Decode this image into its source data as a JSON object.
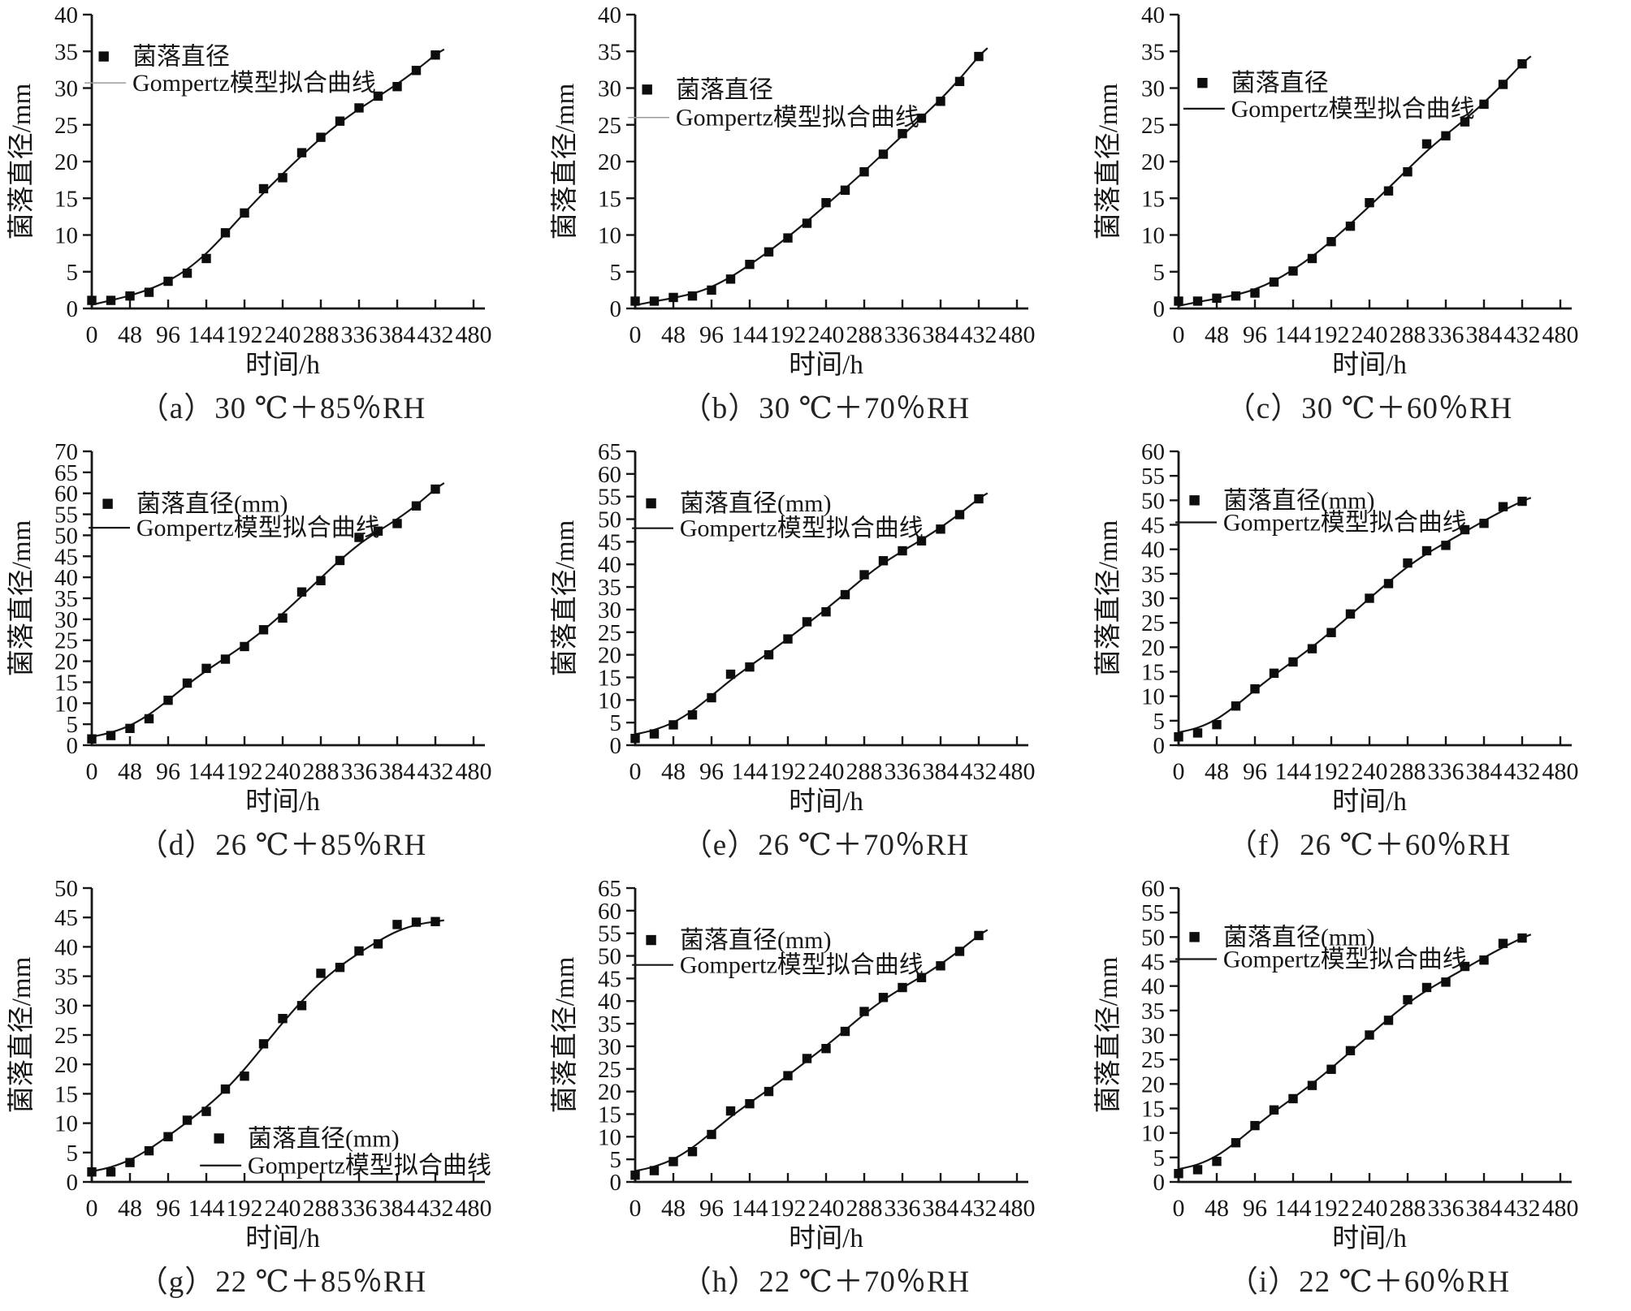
{
  "chart_data": {
    "type": "scatter",
    "grid": false,
    "xlabel": "时间/h",
    "ylabel": "菌落直径/mm",
    "xlim": [
      0,
      480
    ],
    "x_ticks": [
      0,
      48,
      96,
      144,
      192,
      240,
      288,
      336,
      384,
      432,
      480
    ],
    "y_tick_step": 5,
    "time_h": [
      0,
      24,
      48,
      72,
      96,
      120,
      144,
      168,
      192,
      216,
      240,
      264,
      288,
      312,
      336,
      360,
      384,
      408,
      432
    ],
    "series_names": {
      "points": "菌落直径",
      "fit_line": "Gompertz模型拟合曲线"
    },
    "subplots": [
      {
        "id": "a",
        "caption": "（a）30 ℃＋85％RH",
        "ylim": [
          0,
          40
        ],
        "legend": {
          "marker_label": "菌落直径",
          "line_label": "Gompertz模型拟合曲线",
          "position": "top-left"
        },
        "colony_diameter_mm": [
          1.1,
          1.1,
          1.7,
          2.2,
          3.7,
          4.8,
          6.8,
          10.3,
          13.0,
          16.3,
          17.8,
          21.2,
          23.3,
          25.5,
          27.3,
          28.9,
          30.2,
          32.4,
          34.5
        ]
      },
      {
        "id": "b",
        "caption": "（b）30 ℃＋70％RH",
        "ylim": [
          0,
          40
        ],
        "legend": {
          "marker_label": "菌落直径",
          "line_label": "Gompertz模型拟合曲线",
          "position": "top-left"
        },
        "colony_diameter_mm": [
          1.0,
          1.0,
          1.5,
          1.7,
          2.5,
          4.0,
          6.0,
          7.7,
          9.6,
          11.6,
          14.4,
          16.1,
          18.6,
          21.0,
          23.8,
          25.9,
          28.2,
          30.9,
          34.3
        ]
      },
      {
        "id": "c",
        "caption": "（c）30 ℃＋60％RH",
        "ylim": [
          0,
          40
        ],
        "legend": {
          "marker_label": "菌落直径",
          "line_label": "Gompertz模型拟合曲线",
          "position": "top-left"
        },
        "colony_diameter_mm": [
          1.0,
          1.0,
          1.4,
          1.7,
          2.1,
          3.6,
          5.1,
          6.8,
          9.1,
          11.2,
          14.4,
          16.0,
          18.6,
          22.4,
          23.5,
          25.4,
          27.8,
          30.5,
          33.3
        ]
      },
      {
        "id": "d",
        "caption": "（d）26 ℃＋85％RH",
        "ylim": [
          0,
          70
        ],
        "legend": {
          "marker_label": "菌落直径(mm)",
          "line_label": "Gompertz模型拟合曲线",
          "position": "top-left"
        },
        "colony_diameter_mm": [
          1.5,
          2.3,
          4.0,
          6.3,
          10.7,
          14.8,
          18.3,
          20.5,
          23.5,
          27.5,
          30.3,
          36.5,
          39.2,
          44.0,
          49.5,
          51.0,
          52.8,
          57.0,
          61.0
        ]
      },
      {
        "id": "e",
        "caption": "（e）26 ℃＋70％RH",
        "ylim": [
          0,
          65
        ],
        "legend": {
          "marker_label": "菌落直径(mm)",
          "line_label": "Gompertz模型拟合曲线",
          "position": "top-left"
        },
        "colony_diameter_mm": [
          1.5,
          2.5,
          4.5,
          6.7,
          10.5,
          15.7,
          17.3,
          20.0,
          23.5,
          27.3,
          29.5,
          33.3,
          37.7,
          40.8,
          43.0,
          45.2,
          47.8,
          51.0,
          54.5
        ]
      },
      {
        "id": "f",
        "caption": "（f）26 ℃＋60％RH",
        "ylim": [
          0,
          60
        ],
        "legend": {
          "marker_label": "菌落直径(mm)",
          "line_label": "Gompertz模型拟合曲线",
          "position": "top-left"
        },
        "colony_diameter_mm": [
          1.7,
          2.5,
          4.2,
          8.0,
          11.5,
          14.7,
          17.0,
          19.7,
          23.0,
          26.8,
          30.0,
          33.0,
          37.2,
          39.7,
          40.8,
          44.0,
          45.3,
          48.7,
          49.8
        ]
      },
      {
        "id": "g",
        "caption": "（g）22 ℃＋85％RH",
        "ylim": [
          0,
          50
        ],
        "legend": {
          "marker_label": "菌落直径(mm)",
          "line_label": "Gompertz模型拟合曲线",
          "position": "bottom-right"
        },
        "colony_diameter_mm": [
          1.7,
          1.7,
          3.3,
          5.3,
          7.7,
          10.5,
          12.0,
          15.8,
          18.0,
          23.5,
          27.8,
          30.0,
          35.5,
          36.5,
          39.3,
          40.5,
          43.8,
          44.2,
          44.3
        ]
      },
      {
        "id": "h",
        "caption": "（h）22 ℃＋70％RH",
        "ylim": [
          0,
          65
        ],
        "legend": {
          "marker_label": "菌落直径(mm)",
          "line_label": "Gompertz模型拟合曲线",
          "position": "top-left"
        },
        "colony_diameter_mm": [
          1.5,
          2.5,
          4.5,
          6.7,
          10.5,
          15.7,
          17.3,
          20.0,
          23.5,
          27.3,
          29.5,
          33.3,
          37.7,
          40.8,
          43.0,
          45.2,
          47.8,
          51.0,
          54.5
        ]
      },
      {
        "id": "i",
        "caption": "（i）22 ℃＋60％RH",
        "ylim": [
          0,
          60
        ],
        "legend": {
          "marker_label": "菌落直径(mm)",
          "line_label": "Gompertz模型拟合曲线",
          "position": "top-left"
        },
        "colony_diameter_mm": [
          1.7,
          2.5,
          4.2,
          8.0,
          11.5,
          14.7,
          17.0,
          19.7,
          23.0,
          26.8,
          30.0,
          33.0,
          37.2,
          39.7,
          40.8,
          44.0,
          45.3,
          48.7,
          49.8
        ]
      }
    ],
    "colors": {
      "ink": "#161616",
      "marker": "#0d0d0d",
      "fit_line": "#161616",
      "legend_line_light": "#9b9b9b",
      "background": "#ffffff"
    }
  }
}
